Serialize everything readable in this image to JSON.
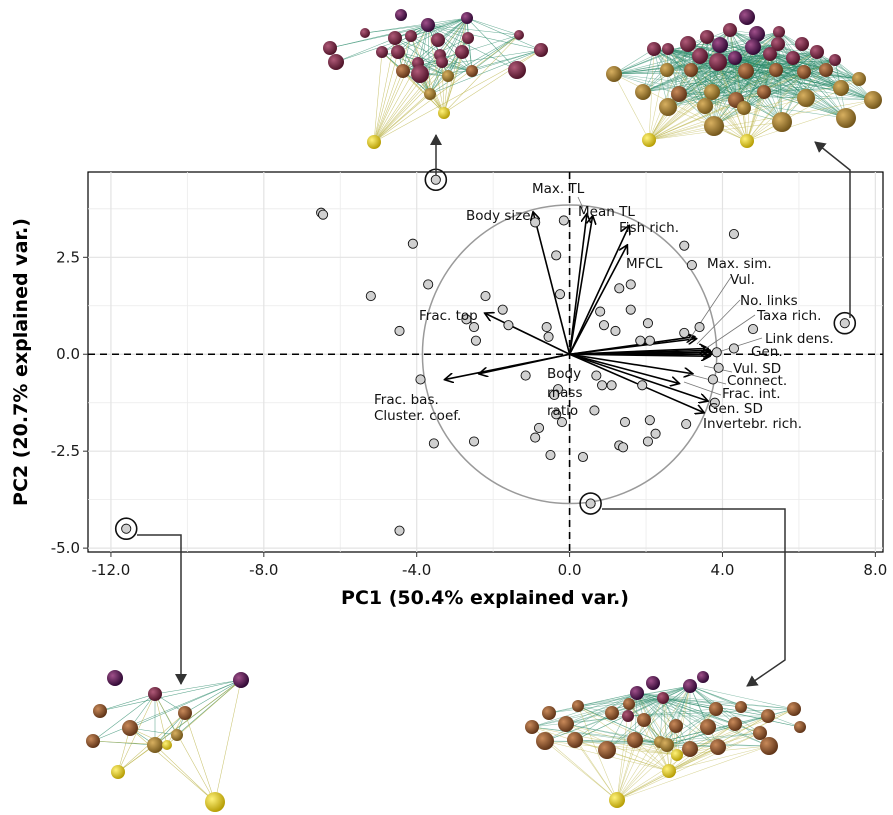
{
  "chart_data": {
    "type": "scatter",
    "title": "",
    "xlabel": "PC1 (50.4% explained var.)",
    "ylabel": "PC2 (20.7% explained var.)",
    "xlim": [
      -12.6,
      8.2
    ],
    "ylim": [
      -5.1,
      4.7
    ],
    "xticks": [
      -12,
      -8,
      -4,
      0,
      4,
      8
    ],
    "xtick_labels": [
      "-12.0",
      "-8.0",
      "-4.0",
      "0.0",
      "4.0",
      "8.0"
    ],
    "yticks": [
      -5,
      -2.5,
      0,
      2.5
    ],
    "ytick_labels": [
      "-5.0",
      "-2.5",
      "0.0",
      "2.5"
    ],
    "grid": true,
    "reference_lines": {
      "x": 0,
      "y": 0,
      "style": "dashed"
    },
    "correlation_circle_radius": 3.85,
    "points": [
      [
        -6.5,
        3.65
      ],
      [
        -6.45,
        3.6
      ],
      [
        -4.1,
        2.85
      ],
      [
        -5.2,
        1.5
      ],
      [
        -3.7,
        1.8
      ],
      [
        -4.45,
        0.6
      ],
      [
        -3.9,
        -0.65
      ],
      [
        -3.55,
        -2.3
      ],
      [
        -4.45,
        -4.55
      ],
      [
        -2.2,
        1.5
      ],
      [
        -2.5,
        0.7
      ],
      [
        -2.45,
        0.35
      ],
      [
        -2.7,
        0.9
      ],
      [
        -1.75,
        1.15
      ],
      [
        -1.6,
        0.75
      ],
      [
        -0.15,
        3.45
      ],
      [
        -0.35,
        2.55
      ],
      [
        -0.25,
        1.55
      ],
      [
        -0.6,
        0.7
      ],
      [
        -0.55,
        0.45
      ],
      [
        -1.15,
        -0.55
      ],
      [
        -0.3,
        -0.9
      ],
      [
        -0.4,
        -1.05
      ],
      [
        -0.35,
        -1.55
      ],
      [
        -0.2,
        -1.75
      ],
      [
        -0.8,
        -1.9
      ],
      [
        -0.9,
        -2.15
      ],
      [
        -0.5,
        -2.6
      ],
      [
        0.35,
        -2.65
      ],
      [
        0.55,
        -3.85
      ],
      [
        -2.5,
        -2.25
      ],
      [
        0.8,
        1.1
      ],
      [
        0.9,
        0.75
      ],
      [
        0.7,
        -0.55
      ],
      [
        0.85,
        -0.8
      ],
      [
        1.1,
        -0.8
      ],
      [
        0.65,
        -1.45
      ],
      [
        1.3,
        1.7
      ],
      [
        1.6,
        1.8
      ],
      [
        1.6,
        1.15
      ],
      [
        1.2,
        0.6
      ],
      [
        1.85,
        0.35
      ],
      [
        2.1,
        0.35
      ],
      [
        2.05,
        0.8
      ],
      [
        1.9,
        -0.8
      ],
      [
        1.45,
        -1.75
      ],
      [
        2.1,
        -1.7
      ],
      [
        2.25,
        -2.05
      ],
      [
        1.3,
        -2.35
      ],
      [
        1.4,
        -2.4
      ],
      [
        2.05,
        -2.25
      ],
      [
        3.0,
        2.8
      ],
      [
        3.2,
        2.3
      ],
      [
        3.0,
        0.55
      ],
      [
        3.4,
        0.7
      ],
      [
        4.3,
        3.1
      ],
      [
        4.8,
        0.65
      ],
      [
        4.3,
        0.15
      ],
      [
        3.85,
        0.05
      ],
      [
        3.75,
        -0.65
      ],
      [
        3.9,
        -0.35
      ],
      [
        3.8,
        -1.25
      ],
      [
        3.05,
        -1.8
      ],
      [
        -0.9,
        3.4
      ],
      [
        -3.5,
        4.5
      ],
      [
        -11.6,
        -4.5
      ],
      [
        7.2,
        0.8
      ],
      [
        0.55,
        -3.85
      ]
    ],
    "highlighted_points": [
      [
        -3.5,
        4.5
      ],
      [
        7.2,
        0.8
      ],
      [
        -11.6,
        -4.5
      ],
      [
        0.55,
        -3.85
      ]
    ],
    "loadings": [
      {
        "label": "Max. TL",
        "x": 0.45,
        "y": 3.6
      },
      {
        "label": "Mean TL",
        "x": 0.6,
        "y": 3.55
      },
      {
        "label": "Body size",
        "x": -0.95,
        "y": 3.65
      },
      {
        "label": "Fish rich.",
        "x": 1.55,
        "y": 3.3
      },
      {
        "label": "MFCL",
        "x": 1.5,
        "y": 2.8
      },
      {
        "label": "Frac. top",
        "x": -2.2,
        "y": 1.05
      },
      {
        "label": "Max. sim.",
        "x": 3.25,
        "y": 0.45
      },
      {
        "label": "Vul.",
        "x": 3.3,
        "y": 0.4
      },
      {
        "label": "No. links",
        "x": 3.6,
        "y": 0.15
      },
      {
        "label": "Taxa rich.",
        "x": 3.65,
        "y": 0.1
      },
      {
        "label": "Link dens.",
        "x": 3.7,
        "y": 0.05
      },
      {
        "label": "Gen.",
        "x": 3.7,
        "y": 0.0
      },
      {
        "label": "Vul. SD",
        "x": 3.65,
        "y": -0.05
      },
      {
        "label": "Connect.",
        "x": 3.2,
        "y": -0.5
      },
      {
        "label": "Frac. int.",
        "x": 2.85,
        "y": -0.75
      },
      {
        "label": "Gen. SD",
        "x": 3.6,
        "y": -1.2
      },
      {
        "label": "Invertebr. rich.",
        "x": 3.5,
        "y": -1.5
      },
      {
        "label": "Frac. bas.",
        "x": -3.25,
        "y": -0.65
      },
      {
        "label": "Cluster. coef.",
        "x": -2.35,
        "y": -0.5
      },
      {
        "label": "Body mass ratio",
        "x": -0.05,
        "y": -0.05
      }
    ]
  },
  "labels": {
    "max_tl": "Max. TL",
    "mean_tl": "Mean TL",
    "body_size": "Body size",
    "fish_rich": "Fish rich.",
    "mfcl": "MFCL",
    "frac_top": "Frac. top",
    "max_sim": "Max. sim.",
    "vul": "Vul.",
    "no_links": "No. links",
    "taxa_rich": "Taxa rich.",
    "link_dens": "Link dens.",
    "gen": "Gen.",
    "vul_sd": "Vul. SD",
    "connect": "Connect.",
    "frac_int": "Frac. int.",
    "gen_sd": "Gen. SD",
    "invertebr_rich": "Invertebr. rich.",
    "frac_bas": "Frac. bas.",
    "cluster_coef": "Cluster. coef.",
    "body_mass_ratio_1": "Body",
    "body_mass_ratio_2": "mass",
    "body_mass_ratio_3": "ratio"
  },
  "colors": {
    "point_fill": "#d0d0d0",
    "grid": "#ebebeb",
    "circle": "#9a9a9a",
    "node_basal": "#e6cc10",
    "node_mid": "#8a5530",
    "node_top": "#3a0a40",
    "edge": "#2a8a6a"
  }
}
